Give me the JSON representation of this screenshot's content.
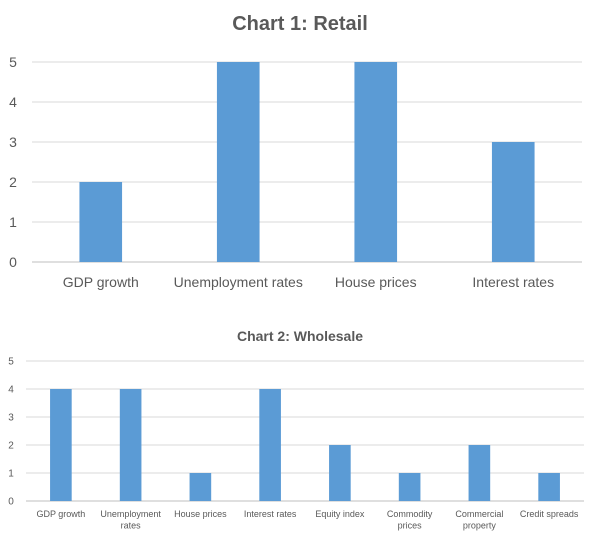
{
  "chart_data": [
    {
      "type": "bar",
      "title": "Chart 1: Retail",
      "categories": [
        "GDP growth",
        "Unemployment rates",
        "House prices",
        "Interest rates"
      ],
      "values": [
        2,
        5,
        5,
        3
      ],
      "ylim": [
        0,
        5
      ],
      "yticks": [
        0,
        1,
        2,
        3,
        4,
        5
      ],
      "grid": true,
      "bar_color": "#5b9bd5"
    },
    {
      "type": "bar",
      "title": "Chart 2: Wholesale",
      "categories": [
        [
          "GDP growth"
        ],
        [
          "Unemployment",
          "rates"
        ],
        [
          "House prices"
        ],
        [
          "Interest rates"
        ],
        [
          "Equity index"
        ],
        [
          "Commodity",
          "prices"
        ],
        [
          "Commercial",
          "property"
        ],
        [
          "Credit spreads"
        ]
      ],
      "values": [
        4,
        4,
        1,
        4,
        2,
        1,
        2,
        1
      ],
      "ylim": [
        0,
        5
      ],
      "yticks": [
        0,
        1,
        2,
        3,
        4,
        5
      ],
      "grid": true,
      "bar_color": "#5b9bd5"
    }
  ]
}
